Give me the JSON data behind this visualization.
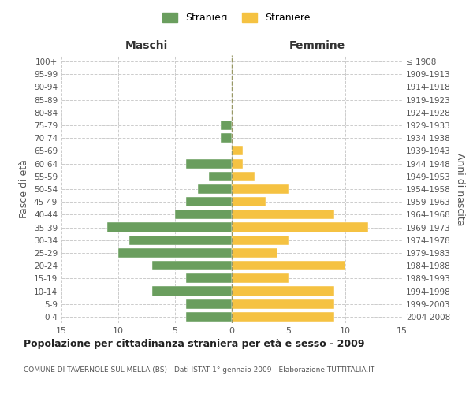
{
  "age_groups": [
    "0-4",
    "5-9",
    "10-14",
    "15-19",
    "20-24",
    "25-29",
    "30-34",
    "35-39",
    "40-44",
    "45-49",
    "50-54",
    "55-59",
    "60-64",
    "65-69",
    "70-74",
    "75-79",
    "80-84",
    "85-89",
    "90-94",
    "95-99",
    "100+"
  ],
  "birth_years": [
    "2004-2008",
    "1999-2003",
    "1994-1998",
    "1989-1993",
    "1984-1988",
    "1979-1983",
    "1974-1978",
    "1969-1973",
    "1964-1968",
    "1959-1963",
    "1954-1958",
    "1949-1953",
    "1944-1948",
    "1939-1943",
    "1934-1938",
    "1929-1933",
    "1924-1928",
    "1919-1923",
    "1914-1918",
    "1909-1913",
    "≤ 1908"
  ],
  "males": [
    4,
    4,
    7,
    4,
    7,
    10,
    9,
    11,
    5,
    4,
    3,
    2,
    4,
    0,
    1,
    1,
    0,
    0,
    0,
    0,
    0
  ],
  "females": [
    9,
    9,
    9,
    5,
    10,
    4,
    5,
    12,
    9,
    3,
    5,
    2,
    1,
    1,
    0,
    0,
    0,
    0,
    0,
    0,
    0
  ],
  "male_color": "#6a9e5e",
  "female_color": "#f5c242",
  "xlim": 15,
  "title": "Popolazione per cittadinanza straniera per età e sesso - 2009",
  "subtitle": "COMUNE DI TAVERNOLE SUL MELLA (BS) - Dati ISTAT 1° gennaio 2009 - Elaborazione TUTTITALIA.IT",
  "xlabel_left": "Maschi",
  "xlabel_right": "Femmine",
  "ylabel_left": "Fasce di età",
  "ylabel_right": "Anni di nascita",
  "legend_male": "Stranieri",
  "legend_female": "Straniere",
  "background_color": "#ffffff",
  "grid_color": "#cccccc",
  "vline_color": "#999966"
}
